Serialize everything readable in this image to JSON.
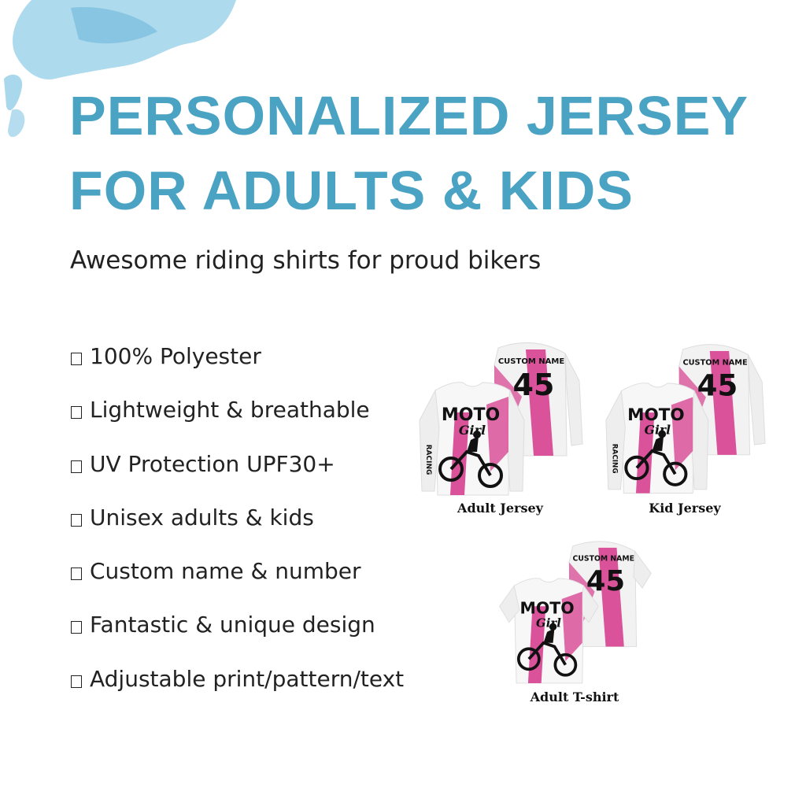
{
  "header": {
    "title_line1": "PERSONALIZED JERSEY",
    "title_line2": "FOR ADULTS & KIDS",
    "subtitle": "Awesome riding shirts for proud bikers"
  },
  "features": [
    "100% Polyester",
    "Lightweight & breathable",
    "UV Protection UPF30+",
    "Unisex adults & kids",
    "Custom name & number",
    "Fantastic & unique design",
    "Adjustable print/pattern/text"
  ],
  "jersey_print": {
    "name": "CUSTOM NAME",
    "number": "45",
    "front_line1": "MOTO",
    "front_line2": "Girl",
    "sleeve": "RACING"
  },
  "products": [
    {
      "label": "Adult Jersey",
      "sleeve": "long"
    },
    {
      "label": "Kid Jersey",
      "sleeve": "long"
    },
    {
      "label": "Adult T-shirt",
      "sleeve": "short"
    }
  ],
  "colors": {
    "title": "#4ba3c4",
    "accent_pink": "#d9529a",
    "splash_blue": "#8ccbe6"
  }
}
